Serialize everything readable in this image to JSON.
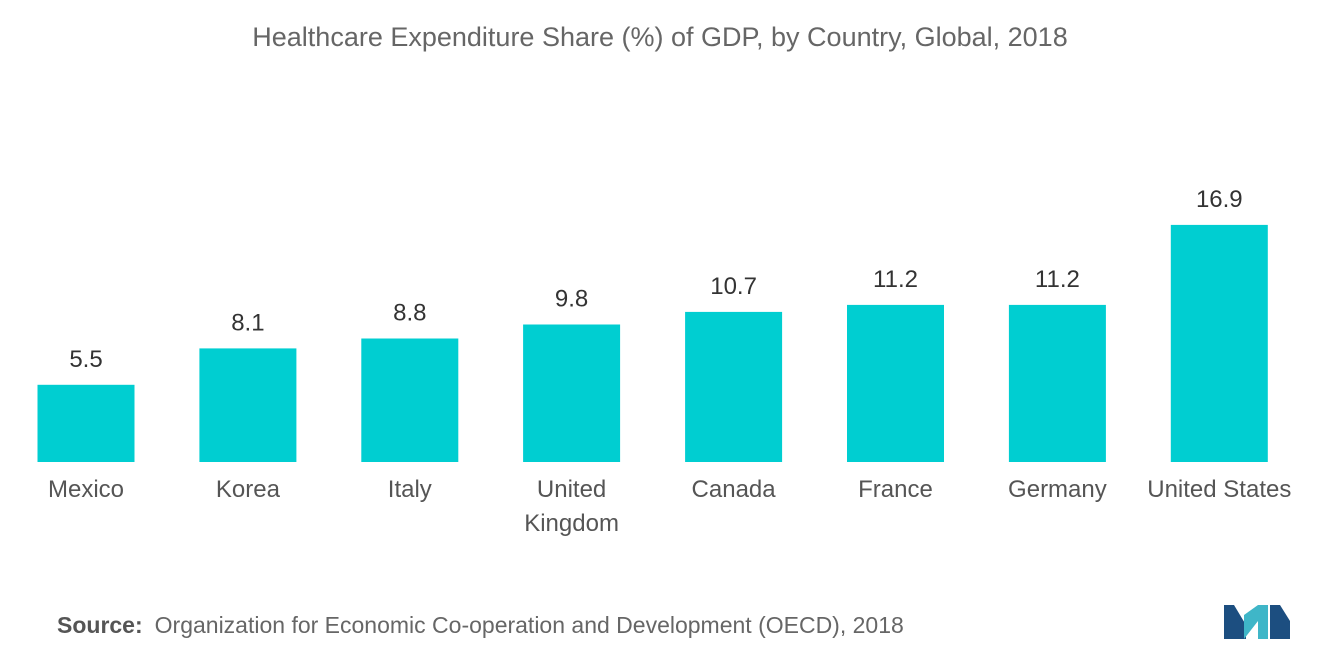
{
  "chart_data": {
    "type": "bar",
    "title": "Healthcare Expenditure Share (%) of GDP, by Country, Global, 2018",
    "categories": [
      "Mexico",
      "Korea",
      "Italy",
      "United Kingdom",
      "Canada",
      "France",
      "Germany",
      "United States"
    ],
    "category_lines": [
      [
        "Mexico"
      ],
      [
        "Korea"
      ],
      [
        "Italy"
      ],
      [
        "United",
        "Kingdom"
      ],
      [
        "Canada"
      ],
      [
        "France"
      ],
      [
        "Germany"
      ],
      [
        "United States"
      ]
    ],
    "values": [
      5.5,
      8.1,
      8.8,
      9.8,
      10.7,
      11.2,
      11.2,
      16.9
    ],
    "value_labels": [
      "5.5",
      "8.1",
      "8.8",
      "9.8",
      "10.7",
      "11.2",
      "11.2",
      "16.9"
    ],
    "xlabel": "",
    "ylabel": "",
    "ylim": [
      0,
      18
    ],
    "grid": false,
    "legend": "none",
    "bar_color": "#00CED1"
  },
  "source": {
    "label": "Source:",
    "text": "Organization for Economic Co-operation and Development (OECD), 2018"
  },
  "logo": {
    "icon": "mordor-intelligence-logo-icon",
    "colors": [
      "#1c4e80",
      "#3fb6c8"
    ]
  }
}
